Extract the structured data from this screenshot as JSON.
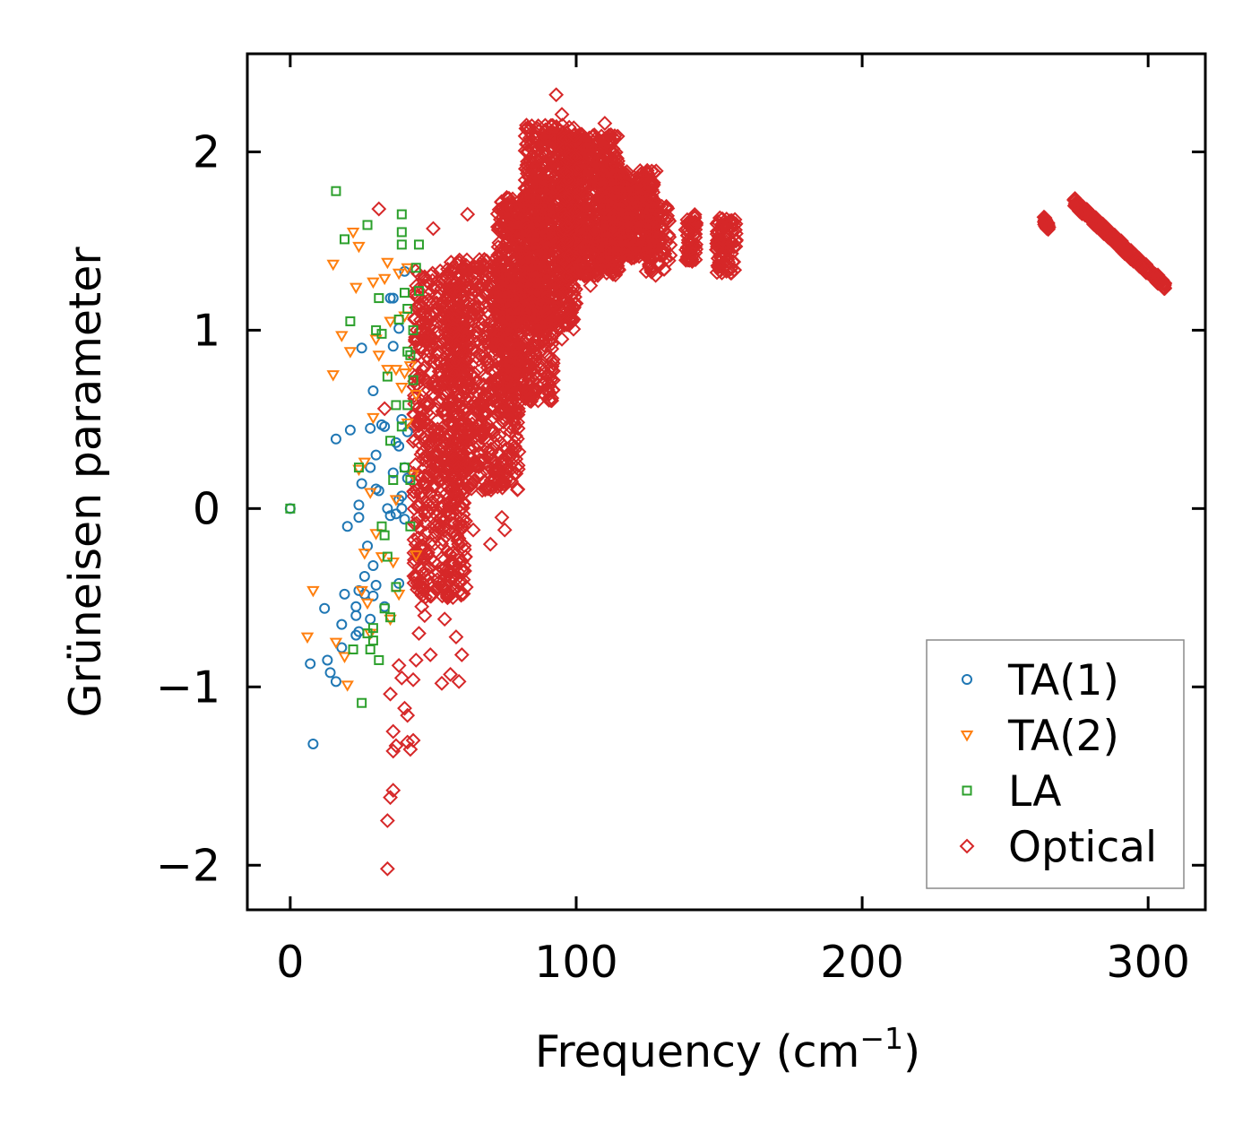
{
  "chart_data": {
    "type": "scatter",
    "title": "",
    "xlabel": "Frequency (cm",
    "xlabel_sup": "−1",
    "xlabel_close": ")",
    "ylabel": "Grüneisen parameter",
    "xlim": [
      -15,
      320
    ],
    "ylim": [
      -2.25,
      2.55
    ],
    "xticks": [
      0,
      100,
      200,
      300
    ],
    "xtick_labels": [
      "0",
      "100",
      "200",
      "300"
    ],
    "yticks": [
      -2,
      -1,
      0,
      1,
      2
    ],
    "ytick_labels": [
      "−2",
      "−1",
      "0",
      "1",
      "2"
    ],
    "grid": false,
    "legend_position": "bottom-right",
    "series": [
      {
        "name": "TA(1)",
        "marker": "circle",
        "color": "#1f77b4",
        "points": [
          [
            0,
            0
          ],
          [
            7,
            -0.87
          ],
          [
            8,
            -1.32
          ],
          [
            13,
            -0.85
          ],
          [
            12,
            -0.56
          ],
          [
            14,
            -0.92
          ],
          [
            16,
            0.39
          ],
          [
            16,
            -0.97
          ],
          [
            18,
            -0.78
          ],
          [
            18,
            -0.65
          ],
          [
            19,
            -0.48
          ],
          [
            20,
            -0.1
          ],
          [
            21,
            0.44
          ],
          [
            23,
            -0.55
          ],
          [
            23,
            -0.71
          ],
          [
            23,
            -0.6
          ],
          [
            24,
            -0.46
          ],
          [
            24,
            -0.69
          ],
          [
            24,
            0.02
          ],
          [
            24,
            -0.05
          ],
          [
            25,
            0.9
          ],
          [
            25,
            0.14
          ],
          [
            26,
            -0.38
          ],
          [
            26,
            -0.48
          ],
          [
            27,
            -0.21
          ],
          [
            28,
            0.23
          ],
          [
            28,
            -0.62
          ],
          [
            28,
            0.45
          ],
          [
            29,
            0.66
          ],
          [
            29,
            -0.32
          ],
          [
            29,
            -0.49
          ],
          [
            30,
            0.11
          ],
          [
            30,
            -0.43
          ],
          [
            30,
            0.3
          ],
          [
            31,
            0.1
          ],
          [
            32,
            0.47
          ],
          [
            33,
            -0.55
          ],
          [
            33,
            0.46
          ],
          [
            34,
            0.0
          ],
          [
            35,
            1.18
          ],
          [
            35,
            -0.04
          ],
          [
            36,
            0.91
          ],
          [
            36,
            1.18
          ],
          [
            36,
            0.2
          ],
          [
            37,
            0.37
          ],
          [
            37,
            -0.03
          ],
          [
            38,
            1.01
          ],
          [
            38,
            -0.42
          ],
          [
            38,
            0.05
          ],
          [
            38,
            0.35
          ],
          [
            39,
            0.0
          ],
          [
            39,
            0.5
          ],
          [
            39,
            0.07
          ],
          [
            40,
            1.33
          ],
          [
            40,
            0.23
          ],
          [
            40,
            -0.06
          ],
          [
            41,
            0.43
          ],
          [
            41,
            0.17
          ]
        ]
      },
      {
        "name": "TA(2)",
        "marker": "triangle-down",
        "color": "#ff7f0e",
        "points": [
          [
            6,
            -0.72
          ],
          [
            8,
            -0.46
          ],
          [
            15,
            1.37
          ],
          [
            15,
            0.75
          ],
          [
            16,
            -0.75
          ],
          [
            18,
            0.97
          ],
          [
            19,
            -0.83
          ],
          [
            20,
            -0.99
          ],
          [
            21,
            0.88
          ],
          [
            22,
            1.55
          ],
          [
            23,
            1.24
          ],
          [
            24,
            1.47
          ],
          [
            24,
            0.22
          ],
          [
            25,
            -0.46
          ],
          [
            26,
            0.26
          ],
          [
            26,
            -0.25
          ],
          [
            27,
            -0.53
          ],
          [
            28,
            0.09
          ],
          [
            28,
            -0.7
          ],
          [
            29,
            0.51
          ],
          [
            29,
            1.27
          ],
          [
            30,
            -0.14
          ],
          [
            30,
            0.95
          ],
          [
            31,
            0.86
          ],
          [
            32,
            -0.27
          ],
          [
            33,
            1.29
          ],
          [
            34,
            1.38
          ],
          [
            34,
            0.78
          ],
          [
            35,
            -0.62
          ],
          [
            35,
            1.05
          ],
          [
            36,
            -0.3
          ],
          [
            37,
            0.05
          ],
          [
            37,
            0.78
          ],
          [
            38,
            -0.48
          ],
          [
            38,
            1.32
          ],
          [
            39,
            0.68
          ],
          [
            40,
            0.76
          ],
          [
            40,
            1.08
          ],
          [
            41,
            0.48
          ],
          [
            41,
            1.35
          ],
          [
            42,
            0.8
          ],
          [
            43,
            0.19
          ],
          [
            44,
            0.64
          ],
          [
            44,
            -0.26
          ]
        ]
      },
      {
        "name": "LA",
        "marker": "square",
        "color": "#2ca02c",
        "points": [
          [
            0,
            0
          ],
          [
            16,
            1.78
          ],
          [
            19,
            1.51
          ],
          [
            21,
            1.05
          ],
          [
            22,
            -0.79
          ],
          [
            24,
            0.23
          ],
          [
            25,
            -1.09
          ],
          [
            27,
            -0.7
          ],
          [
            27,
            1.59
          ],
          [
            28,
            -0.79
          ],
          [
            29,
            -0.67
          ],
          [
            29,
            -0.74
          ],
          [
            30,
            1.0
          ],
          [
            31,
            -0.85
          ],
          [
            31,
            1.18
          ],
          [
            32,
            -0.1
          ],
          [
            32,
            0.98
          ],
          [
            33,
            -0.15
          ],
          [
            33,
            -0.56
          ],
          [
            34,
            -0.27
          ],
          [
            34,
            0.74
          ],
          [
            35,
            0.38
          ],
          [
            35,
            -0.61
          ],
          [
            36,
            0.16
          ],
          [
            37,
            0.58
          ],
          [
            37,
            -0.44
          ],
          [
            38,
            1.06
          ],
          [
            39,
            1.65
          ],
          [
            39,
            1.55
          ],
          [
            39,
            1.48
          ],
          [
            39,
            0.46
          ],
          [
            40,
            1.21
          ],
          [
            40,
            0.23
          ],
          [
            41,
            0.88
          ],
          [
            41,
            1.12
          ],
          [
            42,
            0.86
          ],
          [
            42,
            -0.1
          ],
          [
            42,
            0.16
          ],
          [
            43,
            1.0
          ],
          [
            43,
            0.72
          ],
          [
            44,
            1.35
          ],
          [
            45,
            1.48
          ],
          [
            45,
            1.22
          ],
          [
            41,
            0.58
          ]
        ]
      },
      {
        "name": "Optical",
        "marker": "diamond",
        "color": "#d62728",
        "points": [
          [
            31,
            1.68
          ],
          [
            33,
            0.56
          ],
          [
            34,
            -2.02
          ],
          [
            34,
            -1.75
          ],
          [
            35,
            -1.04
          ],
          [
            35,
            -1.62
          ],
          [
            36,
            -1.36
          ],
          [
            36,
            -1.25
          ],
          [
            36,
            -1.58
          ],
          [
            37,
            -1.33
          ],
          [
            38,
            -0.88
          ],
          [
            39,
            -0.95
          ],
          [
            40,
            -1.12
          ],
          [
            41,
            -1.16
          ],
          [
            41,
            -1.31
          ],
          [
            42,
            -1.35
          ],
          [
            43,
            -1.3
          ],
          [
            43,
            -0.96
          ],
          [
            44,
            -0.85
          ],
          [
            45,
            -0.7
          ],
          [
            46,
            -0.55
          ],
          [
            47,
            -0.6
          ],
          [
            48,
            -0.4
          ],
          [
            49,
            -0.82
          ],
          [
            50,
            1.57
          ],
          [
            53,
            -0.98
          ],
          [
            54,
            -0.62
          ],
          [
            55,
            -0.5
          ],
          [
            56,
            -0.93
          ],
          [
            57,
            -0.3
          ],
          [
            58,
            -0.72
          ],
          [
            59,
            -0.97
          ],
          [
            60,
            -0.82
          ],
          [
            61,
            -0.35
          ],
          [
            62,
            1.65
          ],
          [
            64,
            -0.12
          ],
          [
            70,
            -0.2
          ],
          [
            72,
            0.35
          ],
          [
            74,
            -0.05
          ],
          [
            75,
            -0.12
          ],
          [
            88,
            0.65
          ],
          [
            92,
            0.72
          ],
          [
            95,
            0.95
          ],
          [
            98,
            1.05
          ],
          [
            100,
            1.15
          ],
          [
            105,
            1.25
          ],
          [
            108,
            1.35
          ],
          [
            112,
            1.38
          ],
          [
            118,
            1.42
          ],
          [
            93,
            2.32
          ],
          [
            95,
            2.21
          ],
          [
            110,
            2.16
          ]
        ],
        "dense_regions": [
          {
            "x": [
              43,
              62
            ],
            "y": [
              -0.5,
              1.35
            ],
            "n": 650
          },
          {
            "x": [
              55,
              80
            ],
            "y": [
              0.1,
              1.4
            ],
            "n": 650
          },
          {
            "x": [
              72,
              92
            ],
            "y": [
              0.6,
              1.75
            ],
            "n": 600
          },
          {
            "x": [
              82,
              100
            ],
            "y": [
              1.0,
              2.15
            ],
            "n": 700
          },
          {
            "x": [
              95,
              115
            ],
            "y": [
              1.3,
              2.1
            ],
            "n": 700
          },
          {
            "x": [
              110,
              128
            ],
            "y": [
              1.4,
              1.9
            ],
            "n": 450
          },
          {
            "x": [
              124,
              133
            ],
            "y": [
              1.3,
              1.7
            ],
            "n": 80
          },
          {
            "x": [
              138,
              142
            ],
            "y": [
              1.38,
              1.65
            ],
            "n": 60
          },
          {
            "x": [
              149,
              156
            ],
            "y": [
              1.32,
              1.63
            ],
            "n": 90
          }
        ],
        "bands": [
          {
            "x0": 263.5,
            "x1": 265.5,
            "y0": 1.62,
            "y1": 1.56,
            "n": 25
          },
          {
            "x0": 274,
            "x1": 291,
            "y0": 1.72,
            "y1": 1.47,
            "n": 140
          },
          {
            "x0": 290,
            "x1": 306,
            "y0": 1.48,
            "y1": 1.25,
            "n": 130
          }
        ]
      }
    ]
  }
}
